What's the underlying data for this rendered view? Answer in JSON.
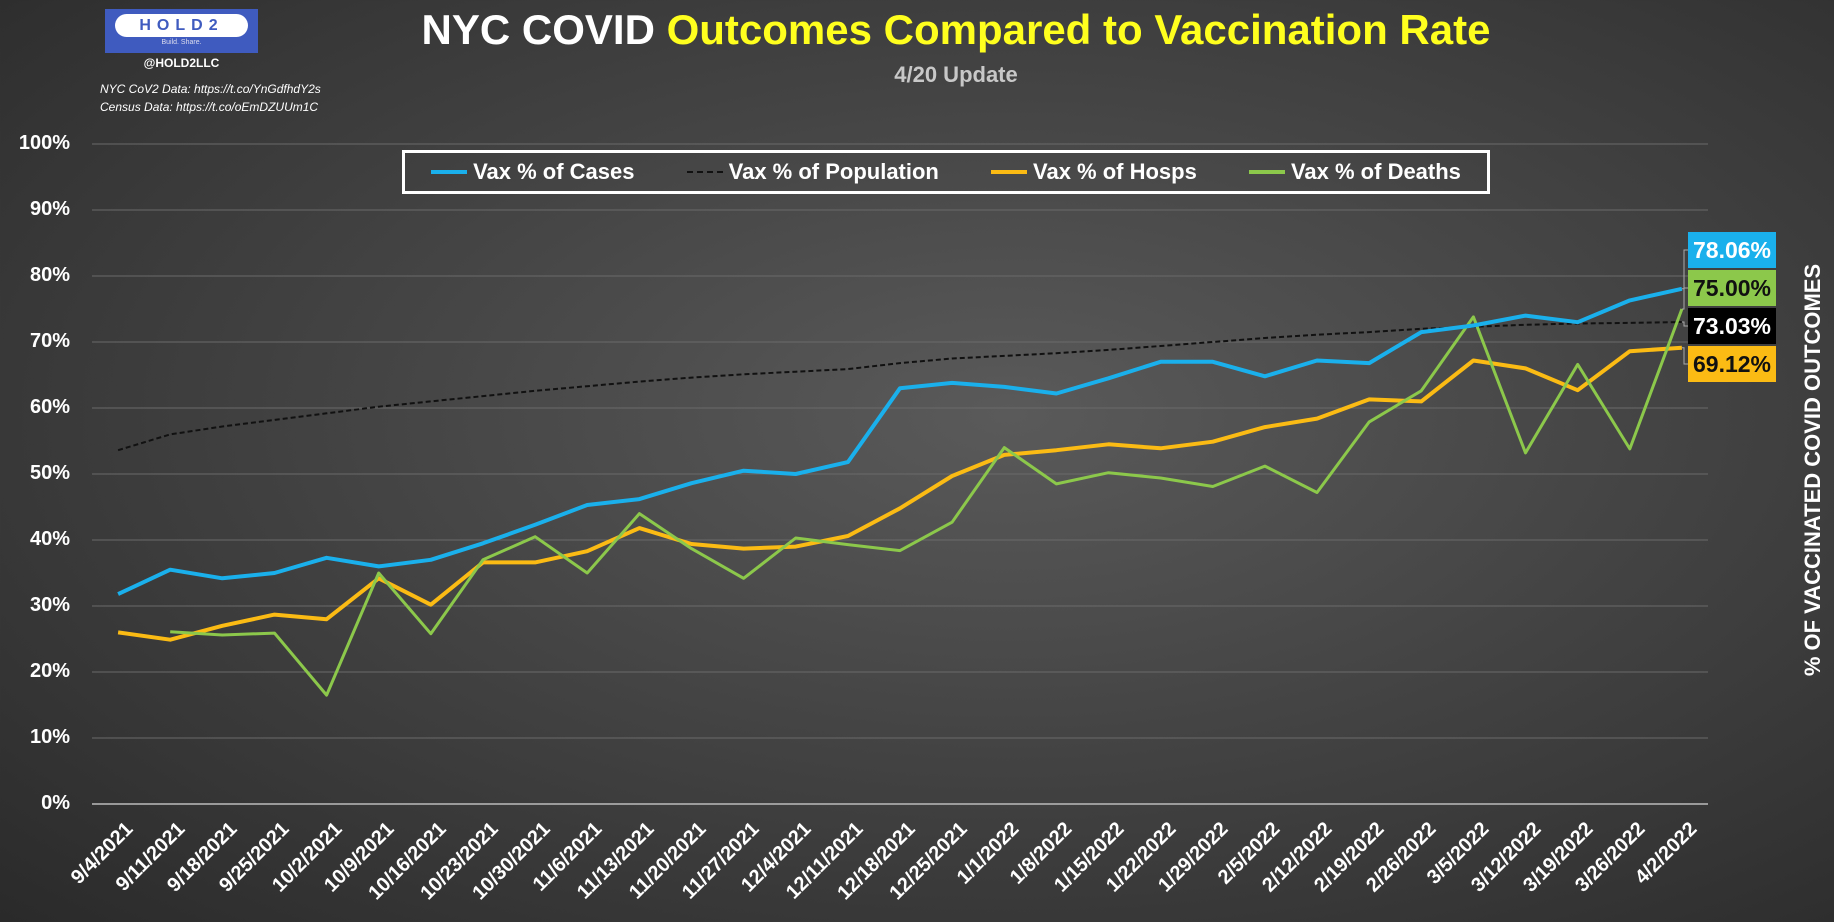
{
  "header": {
    "logo_text": "HOLD2",
    "logo_tagline": "Build. Share.",
    "handle": "@HOLD2LLC",
    "sources": [
      "NYC CoV2 Data: https://t.co/YnGdfhdY2s",
      "Census Data: https://t.co/oEmDZUUm1C"
    ],
    "title_white": "NYC COVID",
    "title_yellow": "Outcomes Compared to Vaccination Rate",
    "subtitle": "4/20 Update"
  },
  "chart_data": {
    "type": "line",
    "title": "NYC COVID Outcomes Compared to Vaccination Rate",
    "subtitle": "4/20 Update",
    "ylabel": "% OF VACCINATED COVID OUTCOMES",
    "xlabel": "",
    "ylim": [
      0,
      100
    ],
    "yticks": [
      "0%",
      "10%",
      "20%",
      "30%",
      "40%",
      "50%",
      "60%",
      "70%",
      "80%",
      "90%",
      "100%"
    ],
    "grid": true,
    "legend_position": "top-center",
    "categories": [
      "9/4/2021",
      "9/11/2021",
      "9/18/2021",
      "9/25/2021",
      "10/2/2021",
      "10/9/2021",
      "10/16/2021",
      "10/23/2021",
      "10/30/2021",
      "11/6/2021",
      "11/13/2021",
      "11/20/2021",
      "11/27/2021",
      "12/4/2021",
      "12/11/2021",
      "12/18/2021",
      "12/25/2021",
      "1/1/2022",
      "1/8/2022",
      "1/15/2022",
      "1/22/2022",
      "1/29/2022",
      "2/5/2022",
      "2/12/2022",
      "2/19/2022",
      "2/26/2022",
      "3/5/2022",
      "3/12/2022",
      "3/19/2022",
      "3/26/2022",
      "4/2/2022"
    ],
    "series": [
      {
        "name": "Vax % of Cases",
        "color": "#1ab0ec",
        "style": "solid",
        "end_label": "78.06%",
        "label_bg": "#1ab0ec",
        "label_fg": "#ffffff",
        "values": [
          31.8,
          35.5,
          34.2,
          35,
          37.3,
          36,
          37,
          39.5,
          42.3,
          45.3,
          46.2,
          48.6,
          50.5,
          50,
          51.8,
          63,
          63.8,
          63.2,
          62.2,
          64.5,
          67,
          67,
          64.8,
          67.2,
          66.8,
          71.5,
          72.5,
          74,
          73,
          76.3,
          78.06
        ]
      },
      {
        "name": "Vax % of Population",
        "color": "#111111",
        "style": "dashed",
        "end_label": "73.03%",
        "label_bg": "#000000",
        "label_fg": "#ffffff",
        "values": [
          53.6,
          56,
          57.2,
          58.2,
          59.2,
          60.2,
          61,
          61.8,
          62.6,
          63.3,
          64,
          64.6,
          65.1,
          65.5,
          65.9,
          66.8,
          67.5,
          67.9,
          68.3,
          68.8,
          69.4,
          70,
          70.6,
          71.1,
          71.5,
          72,
          72.3,
          72.6,
          72.8,
          72.9,
          73.03
        ]
      },
      {
        "name": "Vax % of Hosps",
        "color": "#fbbb14",
        "style": "solid",
        "end_label": "69.12%",
        "label_bg": "#fbbb14",
        "label_fg": "#111111",
        "values": [
          26,
          24.9,
          27,
          28.7,
          28,
          34.2,
          30.2,
          36.6,
          36.6,
          38.3,
          41.8,
          39.4,
          38.7,
          39,
          40.6,
          44.8,
          49.7,
          52.9,
          53.6,
          54.5,
          53.9,
          54.9,
          57.1,
          58.4,
          61.3,
          61,
          67.2,
          66,
          62.7,
          68.6,
          69.12
        ]
      },
      {
        "name": "Vax % of Deaths",
        "color": "#8cc84b",
        "style": "solid",
        "end_label": "75.00%",
        "label_bg": "#8cc84b",
        "label_fg": "#111111",
        "values": [
          null,
          26.1,
          25.6,
          25.9,
          16.5,
          35,
          25.8,
          37,
          40.5,
          35,
          44,
          38.7,
          34.2,
          40.3,
          39.3,
          38.4,
          42.7,
          54,
          48.5,
          50.2,
          49.4,
          48.1,
          51.2,
          47.2,
          57.9,
          62.6,
          73.8,
          53.2,
          66.6,
          53.8,
          75
        ]
      }
    ]
  }
}
